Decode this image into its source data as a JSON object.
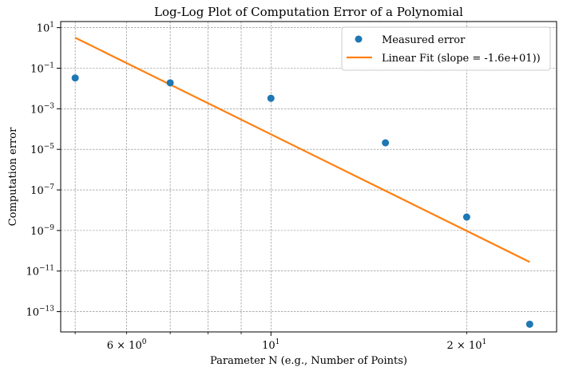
{
  "chart_data": {
    "type": "scatter",
    "title": "Log-Log Plot of Computation Error of a Polynomial",
    "xlabel": "Parameter N (e.g., Number of Points)",
    "ylabel": "Computation error",
    "x_scale": "log",
    "y_scale": "log",
    "xlim": [
      4.75,
      27.5
    ],
    "ylim": [
      1e-14,
      20
    ],
    "grid": true,
    "legend_position": "top-right",
    "x_major_ticks": [
      {
        "value": 10,
        "base": "10",
        "exp": "1"
      }
    ],
    "x_minor_ticks": [
      {
        "value": 6,
        "label": "6 × 10",
        "exp": "0"
      },
      {
        "value": 20,
        "label": "2 × 10",
        "exp": "1"
      }
    ],
    "x_minor_unlabeled": [
      5,
      7,
      8,
      9
    ],
    "y_ticks": [
      {
        "value": 10,
        "base": "10",
        "exp": "1"
      },
      {
        "value": 0.1,
        "base": "10",
        "exp": "−1"
      },
      {
        "value": 0.001,
        "base": "10",
        "exp": "−3"
      },
      {
        "value": 1e-05,
        "base": "10",
        "exp": "−5"
      },
      {
        "value": 1e-07,
        "base": "10",
        "exp": "−7"
      },
      {
        "value": 1e-09,
        "base": "10",
        "exp": "−9"
      },
      {
        "value": 1e-11,
        "base": "10",
        "exp": "−11"
      },
      {
        "value": 1e-13,
        "base": "10",
        "exp": "−13"
      }
    ],
    "series": [
      {
        "name": "Measured error",
        "kind": "scatter",
        "color": "#1f77b4",
        "x": [
          5,
          7,
          10,
          15,
          20,
          25
        ],
        "y": [
          0.033,
          0.019,
          0.0033,
          2.1e-05,
          4.6e-09,
          2.4e-14
        ]
      },
      {
        "name": "Linear Fit (slope = -1.6e+01))",
        "kind": "line",
        "color": "#ff7f0e",
        "x": [
          5,
          25
        ],
        "y": [
          3.2,
          2.8e-11
        ]
      }
    ]
  }
}
